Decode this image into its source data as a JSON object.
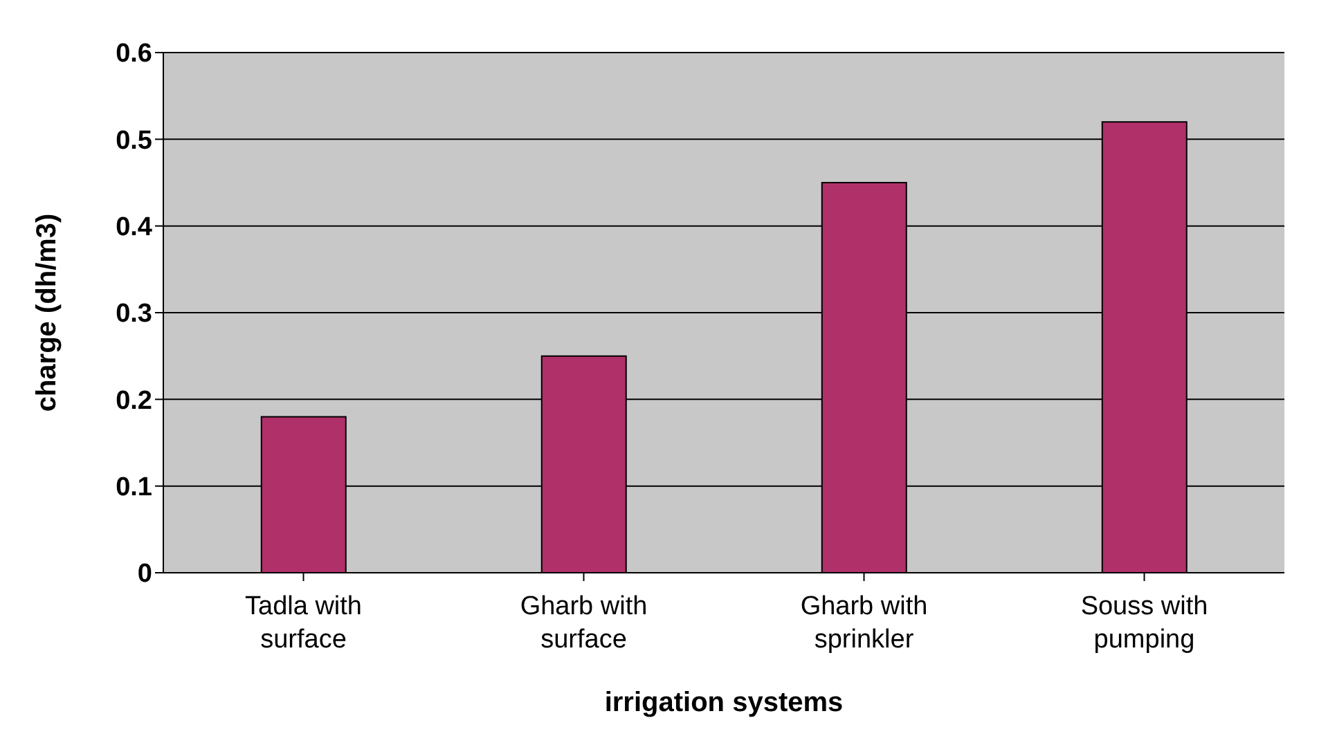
{
  "chart_data": {
    "type": "bar",
    "xlabel": "irrigation systems",
    "ylabel": "charge (dh/m3)",
    "categories": [
      "Tadla with surface",
      "Gharb with surface",
      "Gharb with sprinkler",
      "Souss with pumping"
    ],
    "values": [
      0.18,
      0.25,
      0.45,
      0.52
    ],
    "color": "#b0306a",
    "ylim": [
      0,
      0.6
    ],
    "yticks": [
      0,
      0.1,
      0.2,
      0.3,
      0.4,
      0.5,
      0.6
    ],
    "grid": "y"
  }
}
